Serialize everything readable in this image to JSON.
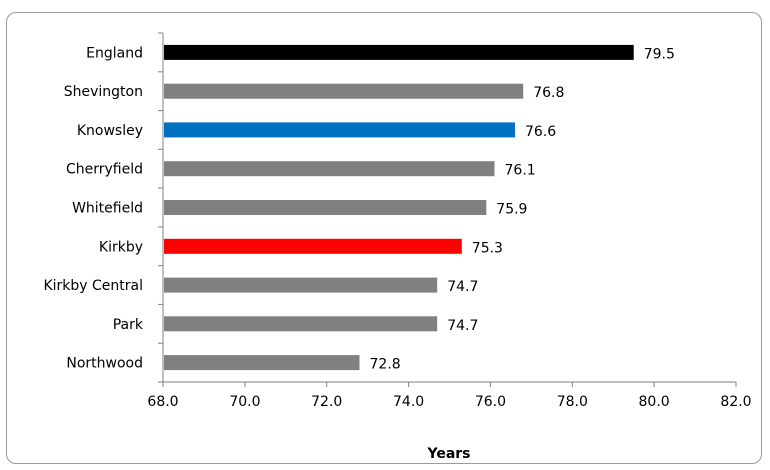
{
  "chart_data": {
    "type": "bar",
    "orientation": "horizontal",
    "title": "",
    "xlabel": "Years",
    "ylabel": "",
    "xlim": [
      68.0,
      82.0
    ],
    "x_ticks": [
      "68.0",
      "70.0",
      "72.0",
      "74.0",
      "76.0",
      "78.0",
      "80.0",
      "82.0"
    ],
    "grid": false,
    "legend": "none",
    "categories": [
      "England",
      "Shevington",
      "Knowsley",
      "Cherryfield",
      "Whitefield",
      "Kirkby",
      "Kirkby Central",
      "Park",
      "Northwood"
    ],
    "values": [
      79.5,
      76.8,
      76.6,
      76.1,
      75.9,
      75.3,
      74.7,
      74.7,
      72.8
    ],
    "value_labels": [
      "79.5",
      "76.8",
      "76.6",
      "76.1",
      "75.9",
      "75.3",
      "74.7",
      "74.7",
      "72.8"
    ],
    "colors": [
      "#000000",
      "#808080",
      "#0070c0",
      "#808080",
      "#808080",
      "#ff0000",
      "#808080",
      "#808080",
      "#808080"
    ]
  }
}
